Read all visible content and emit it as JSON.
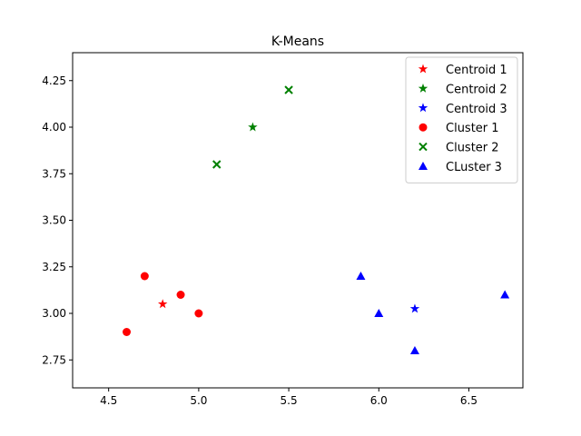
{
  "chart_data": {
    "type": "scatter",
    "title": "K-Means",
    "xlabel": "",
    "ylabel": "",
    "xlim": [
      4.3,
      6.8
    ],
    "ylim": [
      2.6,
      4.4
    ],
    "xticks": [
      "4.5",
      "5.0",
      "5.5",
      "6.0",
      "6.5"
    ],
    "yticks": [
      "2.75",
      "3.00",
      "3.25",
      "3.50",
      "3.75",
      "4.00",
      "4.25"
    ],
    "grid": false,
    "legend_position": "top-right",
    "series": [
      {
        "name": "Centroid 1",
        "marker": "star",
        "color": "#ff0000",
        "points": [
          [
            4.8,
            3.05
          ]
        ]
      },
      {
        "name": "Centroid 2",
        "marker": "star",
        "color": "#008000",
        "points": [
          [
            5.3,
            4.0
          ]
        ]
      },
      {
        "name": "Centroid 3",
        "marker": "star",
        "color": "#0000ff",
        "points": [
          [
            6.2,
            3.025
          ]
        ]
      },
      {
        "name": "Cluster 1",
        "marker": "circle",
        "color": "#ff0000",
        "points": [
          [
            4.7,
            3.2
          ],
          [
            4.9,
            3.1
          ],
          [
            5.0,
            3.0
          ],
          [
            4.6,
            2.9
          ]
        ]
      },
      {
        "name": "Cluster 2",
        "marker": "x",
        "color": "#008000",
        "points": [
          [
            5.1,
            3.8
          ],
          [
            5.5,
            4.2
          ]
        ]
      },
      {
        "name": "CLuster 3",
        "marker": "triangle",
        "color": "#0000ff",
        "points": [
          [
            5.9,
            3.2
          ],
          [
            6.0,
            3.0
          ],
          [
            6.2,
            2.8
          ],
          [
            6.7,
            3.1
          ]
        ]
      }
    ]
  }
}
